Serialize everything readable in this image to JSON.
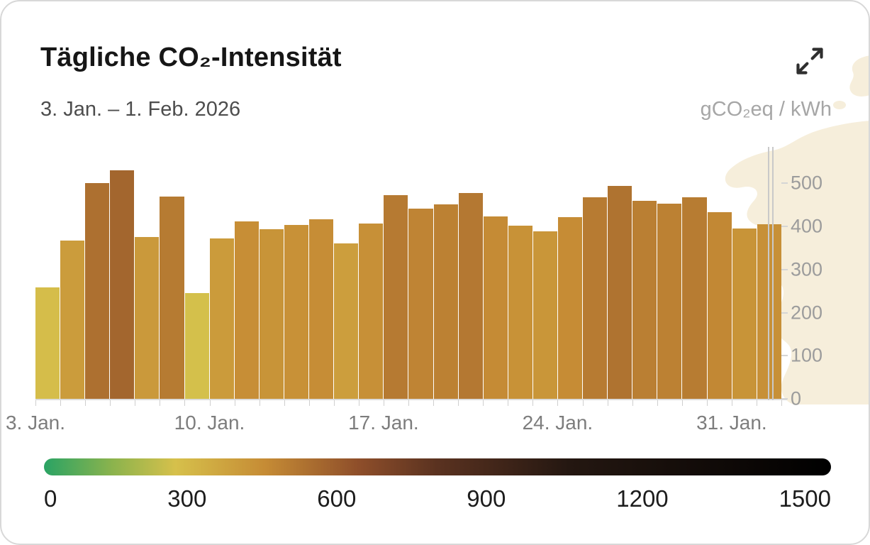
{
  "card": {
    "title": "Tägliche CO₂-Intensität",
    "date_range": "3. Jan. – 1. Feb. 2026",
    "unit_label": "gCO₂eq / kWh"
  },
  "icons": {
    "expand": "expand-arrows"
  },
  "chart_data": {
    "type": "bar",
    "title": "Tägliche CO₂-Intensität",
    "subtitle": "3. Jan. – 1. Feb. 2026",
    "ylabel": "gCO₂eq / kWh",
    "ylim": [
      0,
      560
    ],
    "grid": false,
    "y_ticks": [
      0,
      100,
      200,
      300,
      400,
      500
    ],
    "x_ticks": [
      {
        "label": "3. Jan.",
        "day": 0
      },
      {
        "label": "10. Jan.",
        "day": 7
      },
      {
        "label": "17. Jan.",
        "day": 14
      },
      {
        "label": "24. Jan.",
        "day": 21
      },
      {
        "label": "31. Jan.",
        "day": 28
      }
    ],
    "days_total": 30,
    "values": [
      259,
      368,
      500,
      531,
      376,
      470,
      246,
      372,
      412,
      394,
      404,
      416,
      360,
      407,
      473,
      442,
      451,
      477,
      423,
      402,
      388,
      421,
      468,
      494,
      459,
      453,
      467,
      433,
      395,
      406
    ],
    "now_marker_day_fraction": 29.45,
    "color_scale": {
      "min": 0,
      "max": 1500,
      "legend_ticks": [
        "0",
        "300",
        "600",
        "900",
        "1200",
        "1500"
      ],
      "stops": [
        {
          "value": 0,
          "color": "#2aa364"
        },
        {
          "value": 130,
          "color": "#8bb34d"
        },
        {
          "value": 250,
          "color": "#d6c04b"
        },
        {
          "value": 420,
          "color": "#c68c35"
        },
        {
          "value": 600,
          "color": "#8e4e2a"
        },
        {
          "value": 750,
          "color": "#5a3220"
        },
        {
          "value": 1000,
          "color": "#241711"
        },
        {
          "value": 1500,
          "color": "#000000"
        }
      ]
    },
    "map_bg_color": "#f6eedb"
  }
}
